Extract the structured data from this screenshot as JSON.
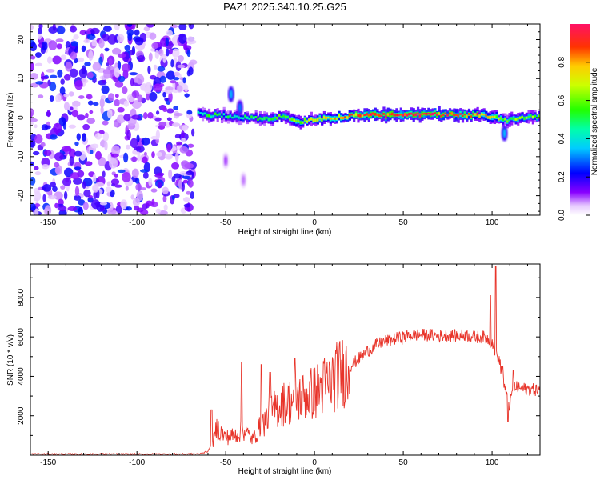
{
  "chart_data": [
    {
      "type": "heatmap",
      "title": "PAZ1.2025.340.10.25.G25",
      "xlabel": "Height of straight line (km)",
      "ylabel": "Frequency (Hz)",
      "xlim": [
        -160,
        127
      ],
      "ylim": [
        -25,
        24
      ],
      "x_ticks": [
        -150,
        -100,
        -50,
        0,
        50,
        100
      ],
      "y_ticks": [
        -20,
        -10,
        0,
        10,
        20
      ],
      "colorbar": {
        "label": "Normalized spectral amplitude",
        "range": [
          0,
          1
        ],
        "ticks": [
          0.0,
          0.2,
          0.4,
          0.6,
          0.8
        ]
      },
      "noise_region_x": [
        -160,
        -68
      ],
      "ridge": [
        {
          "x": -66,
          "f": 1.0,
          "amp": 0.45
        },
        {
          "x": -60,
          "f": 0.5,
          "amp": 0.5
        },
        {
          "x": -55,
          "f": 0.8,
          "amp": 0.5
        },
        {
          "x": -48,
          "f": 0.3,
          "amp": 0.45
        },
        {
          "x": -40,
          "f": 0.0,
          "amp": 0.45
        },
        {
          "x": -30,
          "f": -0.3,
          "amp": 0.5
        },
        {
          "x": -20,
          "f": 0.2,
          "amp": 0.55
        },
        {
          "x": -12,
          "f": -0.5,
          "amp": 0.6
        },
        {
          "x": -8,
          "f": -1.0,
          "amp": 0.65
        },
        {
          "x": 0,
          "f": -0.5,
          "amp": 0.7
        },
        {
          "x": 10,
          "f": 0.0,
          "amp": 0.75
        },
        {
          "x": 20,
          "f": 0.4,
          "amp": 0.8
        },
        {
          "x": 30,
          "f": 0.7,
          "amp": 0.9
        },
        {
          "x": 45,
          "f": 0.7,
          "amp": 0.95
        },
        {
          "x": 60,
          "f": 0.7,
          "amp": 0.95
        },
        {
          "x": 75,
          "f": 0.8,
          "amp": 0.9
        },
        {
          "x": 90,
          "f": 0.6,
          "amp": 0.85
        },
        {
          "x": 100,
          "f": 0.3,
          "amp": 0.7
        },
        {
          "x": 108,
          "f": -0.6,
          "amp": 0.55
        },
        {
          "x": 115,
          "f": 0.0,
          "amp": 0.6
        },
        {
          "x": 127,
          "f": 0.3,
          "amp": 0.6
        }
      ],
      "excursions": [
        {
          "x": -47,
          "f": 6.0,
          "amp": 0.35
        },
        {
          "x": -42,
          "f": 2.5,
          "amp": 0.3
        },
        {
          "x": 107,
          "f": -4.0,
          "amp": 0.35
        },
        {
          "x": -50,
          "f": -11.0,
          "amp": 0.1
        },
        {
          "x": -40,
          "f": -16.0,
          "amp": 0.08
        }
      ]
    },
    {
      "type": "line",
      "xlabel": "Height of straight line (km)",
      "ylabel": "SNR (10 * v/v)",
      "xlim": [
        -160,
        127
      ],
      "ylim": [
        0,
        9700
      ],
      "x_ticks": [
        -150,
        -100,
        -50,
        0,
        50,
        100
      ],
      "y_ticks": [
        2000,
        4000,
        6000,
        8000
      ],
      "color": "#e8342a",
      "series": [
        {
          "name": "SNR",
          "x": [
            -160,
            -140,
            -120,
            -100,
            -80,
            -65,
            -60,
            -57,
            -55,
            -50,
            -45,
            -40,
            -35,
            -30,
            -25,
            -20,
            -15,
            -10,
            -5,
            0,
            5,
            10,
            15,
            20,
            25,
            30,
            35,
            40,
            45,
            50,
            55,
            60,
            65,
            70,
            75,
            80,
            85,
            90,
            95,
            100,
            102,
            104,
            106,
            108,
            110,
            112,
            115,
            120,
            127
          ],
          "y": [
            60,
            55,
            60,
            55,
            60,
            60,
            200,
            700,
            1400,
            900,
            1000,
            1300,
            800,
            1500,
            2100,
            2500,
            2700,
            2900,
            3000,
            3200,
            3500,
            3800,
            4200,
            4500,
            4900,
            5300,
            5600,
            5800,
            5900,
            6000,
            6100,
            6100,
            6100,
            6050,
            6100,
            6050,
            6100,
            6000,
            6000,
            5800,
            5200,
            4800,
            4000,
            3000,
            2500,
            3500,
            3400,
            3350,
            3300
          ]
        }
      ],
      "spikes": [
        {
          "x": -58,
          "y": 2300
        },
        {
          "x": -41,
          "y": 4700
        },
        {
          "x": -30,
          "y": 4600
        },
        {
          "x": -25,
          "y": 4200
        },
        {
          "x": -11,
          "y": 4900
        },
        {
          "x": 99,
          "y": 8100
        },
        {
          "x": 102,
          "y": 9600
        },
        {
          "x": 106,
          "y": 4500
        },
        {
          "x": 109,
          "y": 1700
        },
        {
          "x": 112,
          "y": 4300
        }
      ]
    }
  ]
}
